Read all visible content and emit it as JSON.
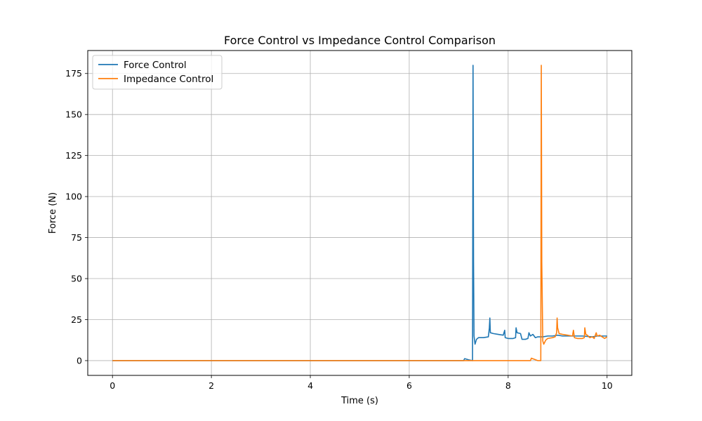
{
  "chart_data": {
    "type": "line",
    "title": "Force Control vs Impedance Control Comparison",
    "xlabel": "Time (s)",
    "ylabel": "Force (N)",
    "xlim": [
      -0.5,
      10.5
    ],
    "ylim": [
      -9,
      189
    ],
    "xticks": [
      0,
      2,
      4,
      6,
      8,
      10
    ],
    "yticks": [
      0,
      25,
      50,
      75,
      100,
      125,
      150,
      175
    ],
    "xtick_labels": [
      "0",
      "2",
      "4",
      "6",
      "8",
      "10"
    ],
    "ytick_labels": [
      "0",
      "25",
      "50",
      "75",
      "100",
      "125",
      "150",
      "175"
    ],
    "grid": true,
    "legend_position": "upper-left",
    "series": [
      {
        "name": "Force Control",
        "color": "#1f77b4",
        "points": [
          [
            0,
            0
          ],
          [
            7.1,
            0
          ],
          [
            7.12,
            1.2
          ],
          [
            7.2,
            0.5
          ],
          [
            7.25,
            0.2
          ],
          [
            7.28,
            0
          ],
          [
            7.29,
            180
          ],
          [
            7.3,
            60
          ],
          [
            7.31,
            15
          ],
          [
            7.33,
            10
          ],
          [
            7.36,
            13
          ],
          [
            7.4,
            14
          ],
          [
            7.5,
            14
          ],
          [
            7.6,
            14.5
          ],
          [
            7.62,
            20
          ],
          [
            7.63,
            26
          ],
          [
            7.64,
            17
          ],
          [
            7.7,
            16.5
          ],
          [
            7.8,
            16
          ],
          [
            7.9,
            15.5
          ],
          [
            7.93,
            18.5
          ],
          [
            7.94,
            14
          ],
          [
            8.0,
            13.5
          ],
          [
            8.1,
            13.5
          ],
          [
            8.15,
            14
          ],
          [
            8.16,
            20
          ],
          [
            8.18,
            17
          ],
          [
            8.25,
            16.5
          ],
          [
            8.28,
            13
          ],
          [
            8.35,
            13
          ],
          [
            8.4,
            13.5
          ],
          [
            8.42,
            17
          ],
          [
            8.45,
            15
          ],
          [
            8.5,
            16
          ],
          [
            8.55,
            14
          ],
          [
            8.6,
            14.5
          ],
          [
            8.7,
            14.5
          ],
          [
            8.8,
            15
          ],
          [
            8.9,
            15
          ],
          [
            9.0,
            15.5
          ],
          [
            9.1,
            15
          ],
          [
            9.3,
            15
          ],
          [
            9.5,
            15
          ],
          [
            9.7,
            14.5
          ],
          [
            9.8,
            15
          ],
          [
            10.0,
            15
          ]
        ]
      },
      {
        "name": "Impedance Control",
        "color": "#ff7f0e",
        "points": [
          [
            0,
            0
          ],
          [
            8.45,
            0
          ],
          [
            8.47,
            1.5
          ],
          [
            8.6,
            0
          ],
          [
            8.66,
            0
          ],
          [
            8.67,
            180
          ],
          [
            8.68,
            60
          ],
          [
            8.7,
            12
          ],
          [
            8.72,
            10
          ],
          [
            8.76,
            12.5
          ],
          [
            8.8,
            13.5
          ],
          [
            8.9,
            14
          ],
          [
            8.95,
            14.5
          ],
          [
            8.98,
            17
          ],
          [
            8.99,
            26
          ],
          [
            9.0,
            20
          ],
          [
            9.03,
            16.5
          ],
          [
            9.1,
            16
          ],
          [
            9.2,
            15.5
          ],
          [
            9.3,
            15
          ],
          [
            9.32,
            18.5
          ],
          [
            9.34,
            14
          ],
          [
            9.4,
            13.5
          ],
          [
            9.5,
            13.5
          ],
          [
            9.54,
            14
          ],
          [
            9.55,
            20
          ],
          [
            9.57,
            16
          ],
          [
            9.6,
            15.5
          ],
          [
            9.65,
            14
          ],
          [
            9.7,
            14.5
          ],
          [
            9.74,
            13.5
          ],
          [
            9.78,
            17
          ],
          [
            9.8,
            15
          ],
          [
            9.85,
            15.5
          ],
          [
            9.9,
            14.5
          ],
          [
            9.95,
            13.5
          ],
          [
            10.0,
            14.5
          ]
        ]
      }
    ]
  }
}
